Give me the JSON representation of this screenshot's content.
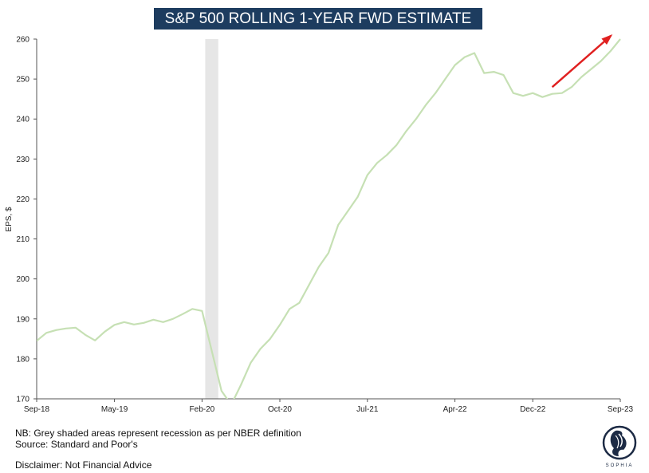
{
  "chart_data": {
    "type": "line",
    "title": "S&P 500 ROLLING 1-YEAR FWD ESTIMATE",
    "ylabel": "EPS, $",
    "xlabel": "",
    "ylim": [
      170,
      260
    ],
    "yticks": [
      170,
      180,
      190,
      200,
      210,
      220,
      230,
      240,
      250,
      260
    ],
    "xlim": [
      "2018-09",
      "2023-09"
    ],
    "xticks": [
      {
        "label": "Sep-18",
        "date": "2018-09"
      },
      {
        "label": "May-19",
        "date": "2019-05"
      },
      {
        "label": "Feb-20",
        "date": "2020-02"
      },
      {
        "label": "Oct-20",
        "date": "2020-10"
      },
      {
        "label": "Jul-21",
        "date": "2021-07"
      },
      {
        "label": "Apr-22",
        "date": "2022-04"
      },
      {
        "label": "Dec-22",
        "date": "2022-12"
      },
      {
        "label": "Sep-23",
        "date": "2023-09"
      }
    ],
    "recession": {
      "start": "2020-02",
      "end": "2020-04"
    },
    "series": [
      {
        "name": "",
        "color": "#c6e0b4",
        "points": [
          [
            "2018-09",
            184.5
          ],
          [
            "2018-10",
            186.5
          ],
          [
            "2018-11",
            187.2
          ],
          [
            "2018-12",
            187.6
          ],
          [
            "2019-01",
            187.8
          ],
          [
            "2019-02",
            186.0
          ],
          [
            "2019-03",
            184.6
          ],
          [
            "2019-04",
            186.8
          ],
          [
            "2019-05",
            188.5
          ],
          [
            "2019-06",
            189.2
          ],
          [
            "2019-07",
            188.6
          ],
          [
            "2019-08",
            189.0
          ],
          [
            "2019-09",
            189.8
          ],
          [
            "2019-10",
            189.2
          ],
          [
            "2019-11",
            190.0
          ],
          [
            "2019-12",
            191.2
          ],
          [
            "2020-01",
            192.5
          ],
          [
            "2020-02",
            192.0
          ],
          [
            "2020-03",
            182.0
          ],
          [
            "2020-04",
            172.0
          ],
          [
            "2020-05",
            168.5
          ],
          [
            "2020-06",
            173.5
          ],
          [
            "2020-07",
            179.0
          ],
          [
            "2020-08",
            182.5
          ],
          [
            "2020-09",
            185.0
          ],
          [
            "2020-10",
            188.5
          ],
          [
            "2020-11",
            192.5
          ],
          [
            "2020-12",
            194.0
          ],
          [
            "2021-01",
            198.5
          ],
          [
            "2021-02",
            203.0
          ],
          [
            "2021-03",
            206.5
          ],
          [
            "2021-04",
            213.5
          ],
          [
            "2021-05",
            217.0
          ],
          [
            "2021-06",
            220.5
          ],
          [
            "2021-07",
            226.0
          ],
          [
            "2021-08",
            229.0
          ],
          [
            "2021-09",
            231.0
          ],
          [
            "2021-10",
            233.5
          ],
          [
            "2021-11",
            237.0
          ],
          [
            "2021-12",
            240.0
          ],
          [
            "2022-01",
            243.5
          ],
          [
            "2022-02",
            246.5
          ],
          [
            "2022-03",
            250.0
          ],
          [
            "2022-04",
            253.5
          ],
          [
            "2022-05",
            255.5
          ],
          [
            "2022-06",
            256.5
          ],
          [
            "2022-07",
            251.5
          ],
          [
            "2022-08",
            251.8
          ],
          [
            "2022-09",
            251.0
          ],
          [
            "2022-10",
            246.5
          ],
          [
            "2022-11",
            245.8
          ],
          [
            "2022-12",
            246.5
          ],
          [
            "2023-01",
            245.5
          ],
          [
            "2023-02",
            246.3
          ],
          [
            "2023-03",
            246.5
          ],
          [
            "2023-04",
            248.0
          ],
          [
            "2023-05",
            250.5
          ],
          [
            "2023-06",
            252.5
          ],
          [
            "2023-07",
            254.5
          ],
          [
            "2023-08",
            257.0
          ],
          [
            "2023-09",
            260.0
          ]
        ]
      }
    ],
    "annotation": {
      "type": "arrow",
      "color": "#e02020",
      "from": [
        "2023-02",
        248
      ],
      "to": [
        "2023-09",
        262
      ]
    }
  },
  "notes": {
    "nb": "NB: Grey shaded areas represent recession as per NBER definition",
    "source": "Source: Standard and Poor's",
    "disclaimer": "Disclaimer: Not Financial Advice"
  },
  "logo": {
    "text": "SOPHIA"
  }
}
